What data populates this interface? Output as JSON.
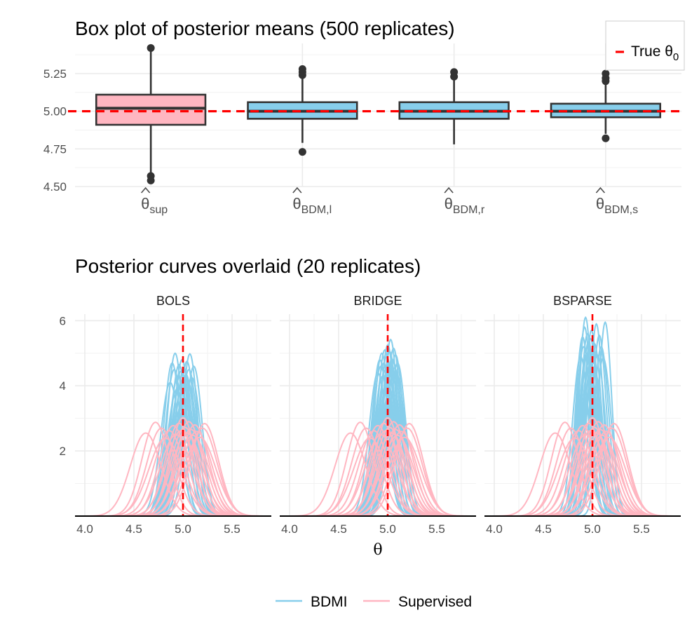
{
  "chart_data": [
    {
      "type": "box",
      "title": "Box plot of posterior means (500 replicates)",
      "xlabel": "",
      "ylabel": "",
      "ylim": [
        4.5,
        5.45
      ],
      "y_ticks": [
        "4.50",
        "4.75",
        "5.00",
        "5.25"
      ],
      "y_tick_values": [
        4.5,
        4.75,
        5.0,
        5.25
      ],
      "grid": true,
      "reference_line": {
        "value": 5.0,
        "label_prefix": "True ",
        "label_symbol": "θ",
        "label_sub": "0",
        "color": "#ff0000"
      },
      "legend_position": "top-right",
      "boxes": [
        {
          "label_symbol": "θ",
          "label_sub": "sup",
          "q1": 4.91,
          "median": 5.02,
          "q3": 5.11,
          "whisker_low": 4.59,
          "whisker_high": 5.41,
          "outliers": [
            4.57,
            4.54,
            5.42
          ],
          "fill": "#ffb6c1"
        },
        {
          "label_symbol": "θ",
          "label_sub": "BDM,l",
          "q1": 4.95,
          "median": 5.0,
          "q3": 5.06,
          "whisker_low": 4.79,
          "whisker_high": 5.22,
          "outliers": [
            4.73,
            5.24,
            5.26,
            5.28
          ],
          "fill": "#87ceeb"
        },
        {
          "label_symbol": "θ",
          "label_sub": "BDM,r",
          "q1": 4.95,
          "median": 5.0,
          "q3": 5.06,
          "whisker_low": 4.78,
          "whisker_high": 5.21,
          "outliers": [
            5.23,
            5.26
          ],
          "fill": "#87ceeb"
        },
        {
          "label_symbol": "θ",
          "label_sub": "BDM,s",
          "q1": 4.96,
          "median": 5.0,
          "q3": 5.05,
          "whisker_low": 4.85,
          "whisker_high": 5.18,
          "outliers": [
            4.82,
            5.2,
            5.22,
            5.25
          ],
          "fill": "#87ceeb"
        }
      ]
    },
    {
      "type": "line",
      "title": "Posterior curves overlaid (20 replicates)",
      "xlabel": "θ",
      "ylabel": "",
      "xlim": [
        3.9,
        5.9
      ],
      "ylim": [
        0,
        6.2
      ],
      "x_ticks": [
        "4.0",
        "4.5",
        "5.0",
        "5.5"
      ],
      "x_tick_values": [
        4.0,
        4.5,
        5.0,
        5.5
      ],
      "y_ticks": [
        "2",
        "4",
        "6"
      ],
      "y_tick_values": [
        2,
        4,
        6
      ],
      "grid": true,
      "reference_line": {
        "value": 5.0,
        "color": "#ff0000"
      },
      "legend_position": "bottom",
      "legend": [
        {
          "name": "BDMI",
          "color": "#87ceeb"
        },
        {
          "name": "Supervised",
          "color": "#ffb6c1"
        }
      ],
      "supervised": {
        "name": "Supervised",
        "color": "#ffb6c1",
        "curves": [
          {
            "mu": 4.62,
            "peak": 2.55
          },
          {
            "mu": 4.72,
            "peak": 2.88
          },
          {
            "mu": 4.78,
            "peak": 2.7
          },
          {
            "mu": 4.82,
            "peak": 2.4
          },
          {
            "mu": 4.86,
            "peak": 2.62
          },
          {
            "mu": 4.9,
            "peak": 2.78
          },
          {
            "mu": 4.93,
            "peak": 2.5
          },
          {
            "mu": 4.96,
            "peak": 2.85
          },
          {
            "mu": 4.98,
            "peak": 2.62
          },
          {
            "mu": 5.0,
            "peak": 3.02
          },
          {
            "mu": 5.02,
            "peak": 2.72
          },
          {
            "mu": 5.04,
            "peak": 2.55
          },
          {
            "mu": 5.06,
            "peak": 2.9
          },
          {
            "mu": 5.08,
            "peak": 2.66
          },
          {
            "mu": 5.1,
            "peak": 2.48
          },
          {
            "mu": 5.12,
            "peak": 2.8
          },
          {
            "mu": 5.14,
            "peak": 2.6
          },
          {
            "mu": 5.17,
            "peak": 2.42
          },
          {
            "mu": 5.2,
            "peak": 2.7
          },
          {
            "mu": 5.22,
            "peak": 2.84
          }
        ]
      },
      "panels": [
        {
          "title": "BOLS",
          "bdmi_curves": [
            {
              "mu": 4.87,
              "peak": 4.1
            },
            {
              "mu": 4.89,
              "peak": 4.7
            },
            {
              "mu": 4.91,
              "peak": 4.5
            },
            {
              "mu": 4.92,
              "peak": 5.0
            },
            {
              "mu": 4.94,
              "peak": 3.9
            },
            {
              "mu": 4.95,
              "peak": 4.3
            },
            {
              "mu": 4.96,
              "peak": 4.65
            },
            {
              "mu": 4.97,
              "peak": 4.0
            },
            {
              "mu": 4.98,
              "peak": 4.45
            },
            {
              "mu": 4.99,
              "peak": 4.8
            },
            {
              "mu": 5.0,
              "peak": 4.2
            },
            {
              "mu": 5.01,
              "peak": 4.55
            },
            {
              "mu": 5.02,
              "peak": 3.95
            },
            {
              "mu": 5.03,
              "peak": 4.35
            },
            {
              "mu": 5.04,
              "peak": 4.75
            },
            {
              "mu": 5.05,
              "peak": 4.1
            },
            {
              "mu": 5.06,
              "peak": 4.5
            },
            {
              "mu": 5.07,
              "peak": 4.98
            },
            {
              "mu": 5.09,
              "peak": 4.25
            },
            {
              "mu": 5.11,
              "peak": 4.6
            }
          ]
        },
        {
          "title": "BRIDGE",
          "bdmi_curves": [
            {
              "mu": 4.9,
              "peak": 4.4
            },
            {
              "mu": 4.92,
              "peak": 4.8
            },
            {
              "mu": 4.93,
              "peak": 4.6
            },
            {
              "mu": 4.94,
              "peak": 5.0
            },
            {
              "mu": 4.95,
              "peak": 4.3
            },
            {
              "mu": 4.96,
              "peak": 4.7
            },
            {
              "mu": 4.97,
              "peak": 5.1
            },
            {
              "mu": 4.98,
              "peak": 4.5
            },
            {
              "mu": 4.99,
              "peak": 4.9
            },
            {
              "mu": 5.0,
              "peak": 5.25
            },
            {
              "mu": 5.01,
              "peak": 4.65
            },
            {
              "mu": 5.02,
              "peak": 5.05
            },
            {
              "mu": 5.03,
              "peak": 5.42
            },
            {
              "mu": 5.04,
              "peak": 4.4
            },
            {
              "mu": 5.05,
              "peak": 4.8
            },
            {
              "mu": 5.06,
              "peak": 5.15
            },
            {
              "mu": 5.07,
              "peak": 4.55
            },
            {
              "mu": 5.08,
              "peak": 4.95
            },
            {
              "mu": 5.09,
              "peak": 4.35
            },
            {
              "mu": 5.1,
              "peak": 4.7
            }
          ]
        },
        {
          "title": "BSPARSE",
          "bdmi_curves": [
            {
              "mu": 4.88,
              "peak": 4.9
            },
            {
              "mu": 4.9,
              "peak": 5.5
            },
            {
              "mu": 4.91,
              "peak": 5.2
            },
            {
              "mu": 4.92,
              "peak": 5.8
            },
            {
              "mu": 4.93,
              "peak": 6.1
            },
            {
              "mu": 4.94,
              "peak": 5.0
            },
            {
              "mu": 4.95,
              "peak": 5.6
            },
            {
              "mu": 4.96,
              "peak": 5.35
            },
            {
              "mu": 4.97,
              "peak": 4.8
            },
            {
              "mu": 4.98,
              "peak": 5.45
            },
            {
              "mu": 4.99,
              "peak": 5.7
            },
            {
              "mu": 5.0,
              "peak": 5.1
            },
            {
              "mu": 5.01,
              "peak": 4.7
            },
            {
              "mu": 5.02,
              "peak": 5.3
            },
            {
              "mu": 5.04,
              "peak": 5.9
            },
            {
              "mu": 5.05,
              "peak": 4.95
            },
            {
              "mu": 5.07,
              "peak": 5.55
            },
            {
              "mu": 5.09,
              "peak": 5.2
            },
            {
              "mu": 5.11,
              "peak": 4.85
            },
            {
              "mu": 5.13,
              "peak": 5.95
            }
          ]
        }
      ]
    }
  ]
}
